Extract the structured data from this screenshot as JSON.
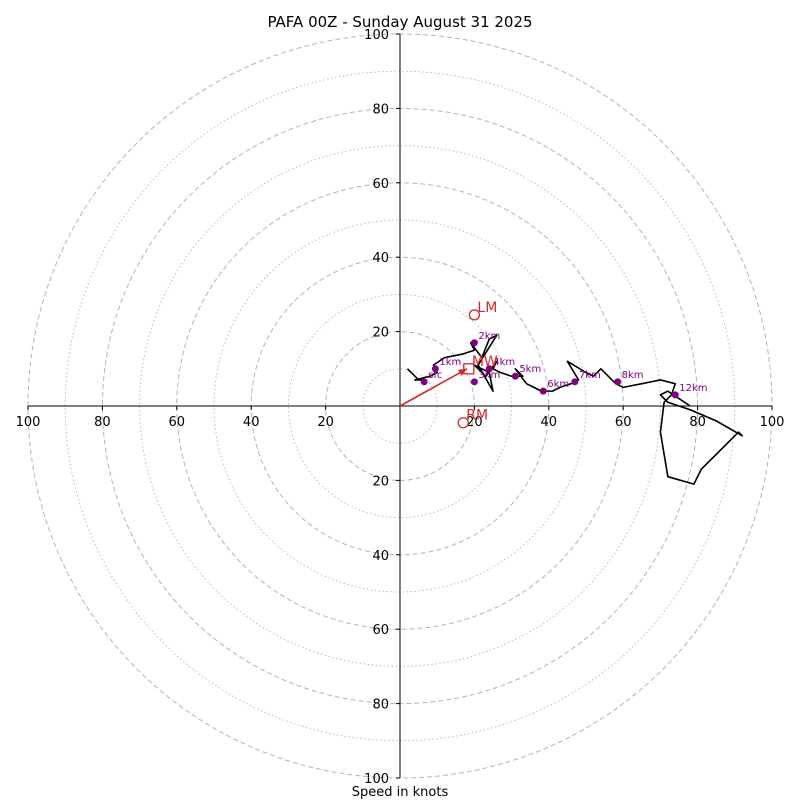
{
  "chart_data": {
    "type": "line",
    "title": "PAFA 00Z - Sunday August 31 2025",
    "xlabel": "Speed in knots",
    "ylabel": "",
    "axis_limit": 100,
    "ring_step": 10,
    "grid": true,
    "tick_labels": [
      "100",
      "80",
      "60",
      "40",
      "20",
      "20",
      "40",
      "60",
      "80",
      "100"
    ],
    "tick_values": [
      -100,
      -80,
      -60,
      -40,
      -20,
      20,
      40,
      60,
      80,
      100
    ],
    "hodograph": {
      "u": [
        2,
        4,
        5,
        6,
        4,
        8,
        10,
        9,
        12,
        17,
        20,
        19,
        22,
        24,
        26,
        21,
        25,
        24,
        20,
        23,
        26,
        25,
        27,
        30,
        33,
        31,
        34,
        36,
        38,
        41,
        43,
        46,
        48,
        45,
        50,
        52,
        54,
        55,
        58,
        60,
        65,
        70,
        74,
        73,
        71,
        70,
        72,
        79,
        81,
        86,
        91,
        92,
        85,
        78,
        72,
        70,
        72,
        75,
        78
      ],
      "v": [
        10,
        8,
        7,
        7,
        7,
        8,
        9,
        11,
        13,
        14,
        15,
        17,
        13,
        18,
        19,
        11,
        4,
        9,
        11,
        8,
        12,
        10,
        9,
        8,
        8,
        10,
        6,
        5,
        4,
        4,
        5,
        6,
        7,
        12,
        9,
        8,
        10,
        9,
        6,
        5,
        6,
        7,
        6,
        3,
        1,
        -7,
        -19,
        -21,
        -17,
        -12,
        -7,
        -8,
        -4,
        -1,
        1,
        3,
        4,
        2,
        0
      ]
    },
    "height_markers": [
      {
        "label": "sfc",
        "u": 6.5,
        "v": 6.5
      },
      {
        "label": "1km",
        "u": 9.5,
        "v": 10
      },
      {
        "label": "2km",
        "u": 20,
        "v": 17
      },
      {
        "label": "3km",
        "u": 20,
        "v": 6.5
      },
      {
        "label": "4km",
        "u": 24,
        "v": 10
      },
      {
        "label": "5km",
        "u": 31,
        "v": 8
      },
      {
        "label": "6km",
        "u": 38.5,
        "v": 4
      },
      {
        "label": "7km",
        "u": 47,
        "v": 6.5
      },
      {
        "label": "8km",
        "u": 58.5,
        "v": 6.5
      },
      {
        "label": "12km",
        "u": 74,
        "v": 3
      }
    ],
    "storm_motion": [
      {
        "label": "LM",
        "u": 20,
        "v": 24.5
      },
      {
        "label": "RM",
        "u": 17,
        "v": -4.5
      }
    ],
    "mean_wind": {
      "label": "MW",
      "u": 18.5,
      "v": 10
    },
    "shear_vector": {
      "u0": 0,
      "v0": 0,
      "u1": 18,
      "v1": 10
    },
    "colors": {
      "hodograph": "#000000",
      "markers": "#800080",
      "storm_motion": "#d62728",
      "grid": "#b4b4b4"
    }
  }
}
